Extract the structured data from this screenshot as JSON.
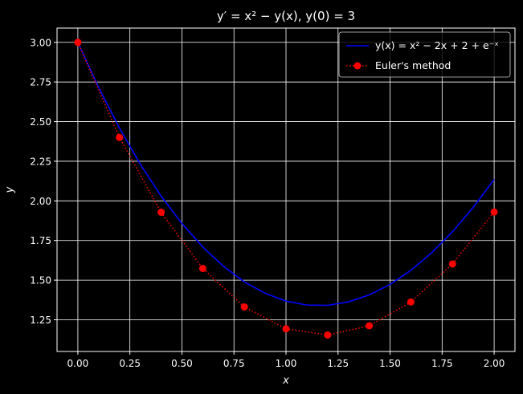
{
  "chart_data": {
    "type": "line",
    "title": "y′ = x² − y(x), y(0) = 3",
    "xlabel": "x",
    "ylabel": "y",
    "xlim": [
      -0.1,
      2.1
    ],
    "ylim": [
      1.05,
      3.09
    ],
    "xticks": [
      0.0,
      0.25,
      0.5,
      0.75,
      1.0,
      1.25,
      1.5,
      1.75,
      2.0
    ],
    "xtick_labels": [
      "0.00",
      "0.25",
      "0.50",
      "0.75",
      "1.00",
      "1.25",
      "1.50",
      "1.75",
      "2.00"
    ],
    "yticks": [
      1.25,
      1.5,
      1.75,
      2.0,
      2.25,
      2.5,
      2.75,
      3.0
    ],
    "ytick_labels": [
      "1.25",
      "1.50",
      "1.75",
      "2.00",
      "2.25",
      "2.50",
      "2.75",
      "3.00"
    ],
    "grid": true,
    "legend_position": "top-right",
    "background": "#000000",
    "series": [
      {
        "name": "y(x) = x² − 2x + 2 + e⁻ˣ",
        "style": "solid",
        "color": "#0000ff",
        "x": [
          0.0,
          0.1,
          0.2,
          0.3,
          0.4,
          0.5,
          0.6,
          0.7,
          0.8,
          0.9,
          1.0,
          1.1,
          1.2,
          1.3,
          1.4,
          1.5,
          1.6,
          1.7,
          1.8,
          1.9,
          2.0
        ],
        "y": [
          3.0,
          2.715,
          2.459,
          2.231,
          2.03,
          1.857,
          1.709,
          1.587,
          1.489,
          1.417,
          1.368,
          1.343,
          1.341,
          1.363,
          1.407,
          1.473,
          1.562,
          1.673,
          1.805,
          1.96,
          2.135
        ]
      },
      {
        "name": "Euler's method",
        "style": "dotted-markers",
        "color": "#ff0000",
        "x": [
          0.0,
          0.2,
          0.4,
          0.6,
          0.8,
          1.0,
          1.2,
          1.4,
          1.6,
          1.8,
          2.0
        ],
        "y": [
          3.0,
          2.4,
          1.928,
          1.574,
          1.331,
          1.193,
          1.154,
          1.212,
          1.362,
          1.602,
          1.93
        ]
      }
    ]
  }
}
